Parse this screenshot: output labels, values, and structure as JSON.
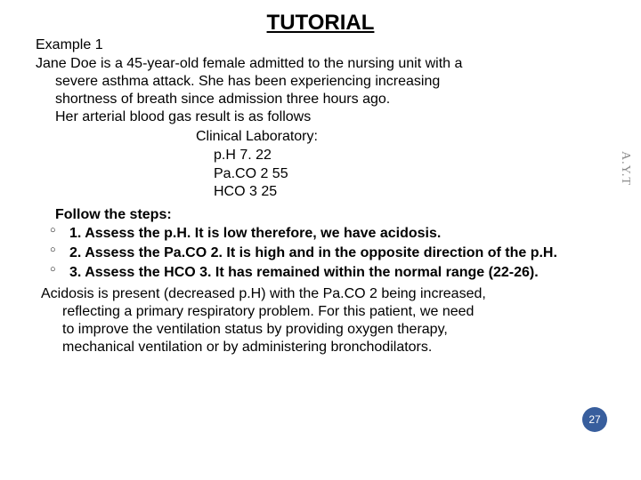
{
  "title": "TUTORIAL",
  "example_label": "Example 1",
  "intro_line1": "Jane Doe is a 45-year-old female admitted to the nursing unit with a",
  "intro_line2": "severe asthma attack. She has been experiencing increasing",
  "intro_line3": "shortness of breath since admission three hours ago.",
  "intro_line4": "Her arterial blood gas result is as follows",
  "lab": {
    "heading": "Clinical Laboratory:",
    "ph": "p.H 7. 22",
    "paco2": "Pa.CO 2 55",
    "hco3": "HCO 3  25"
  },
  "steps_lead": "Follow the steps:",
  "steps": [
    "1. Assess the p.H. It is low  therefore, we have acidosis.",
    "2. Assess the Pa.CO 2. It is high and in the opposite direction of the p.H.",
    "3. Assess the HCO 3. It has remained within the normal range (22-26)."
  ],
  "conclusion_line1": "Acidosis is present (decreased p.H) with the Pa.CO 2 being increased,",
  "conclusion_line2": "reflecting a primary respiratory problem. For this patient, we need",
  "conclusion_line3": "to improve the ventilation status by providing oxygen therapy,",
  "conclusion_line4": "mechanical ventilation or by administering bronchodilators.",
  "page_number": "27",
  "side_label": "A.Y.T"
}
